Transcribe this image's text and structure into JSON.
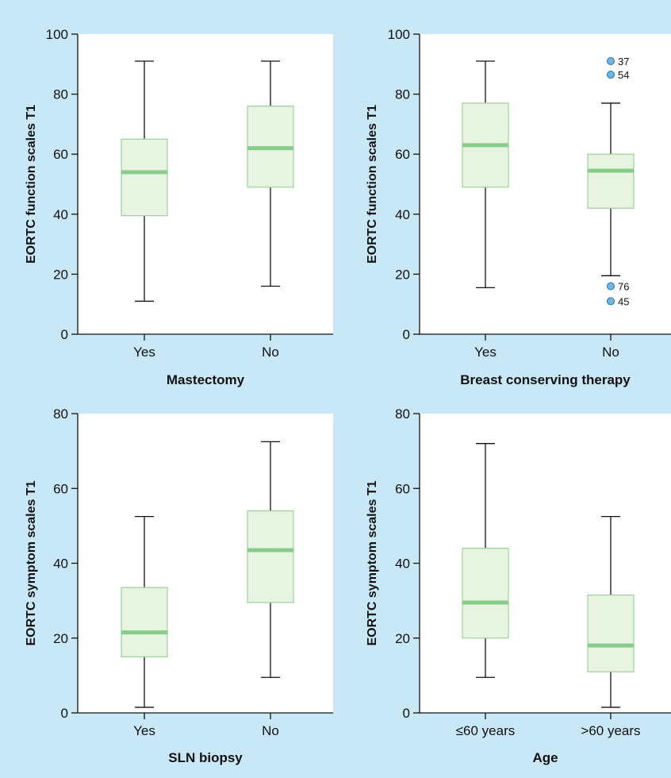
{
  "colors": {
    "background": "#c9e8f7",
    "plot_area": "#ffffff",
    "box_fill": "#e8f4e2",
    "box_edge": "#9bd09a",
    "median": "#86cc8a",
    "whisker": "#111111",
    "outlier_fill": "#6fb6e8",
    "outlier_edge": "#2d6fa8"
  },
  "chart_data": [
    {
      "type": "boxplot",
      "xlabel": "Mastectomy",
      "ylabel": "EORTC function scales T1",
      "ylim": [
        0,
        100
      ],
      "yticks": [
        0,
        20,
        40,
        60,
        80,
        100
      ],
      "categories": [
        "Yes",
        "No"
      ],
      "boxes": [
        {
          "min": 11,
          "q1": 39.5,
          "median": 54,
          "q3": 65,
          "max": 91
        },
        {
          "min": 16,
          "q1": 49,
          "median": 62,
          "q3": 76,
          "max": 91
        }
      ],
      "outliers": []
    },
    {
      "type": "boxplot",
      "xlabel": "Breast conserving therapy",
      "ylabel": "EORTC function scales T1",
      "ylim": [
        0,
        100
      ],
      "yticks": [
        0,
        20,
        40,
        60,
        80,
        100
      ],
      "categories": [
        "Yes",
        "No"
      ],
      "boxes": [
        {
          "min": 15.5,
          "q1": 49,
          "median": 63,
          "q3": 77,
          "max": 91
        },
        {
          "min": 19.5,
          "q1": 42,
          "median": 54.5,
          "q3": 60,
          "max": 77
        }
      ],
      "outliers": [
        {
          "category": 1,
          "value": 91,
          "label": "37"
        },
        {
          "category": 1,
          "value": 86.5,
          "label": "54"
        },
        {
          "category": 1,
          "value": 16,
          "label": "76"
        },
        {
          "category": 1,
          "value": 11,
          "label": "45"
        }
      ]
    },
    {
      "type": "boxplot",
      "xlabel": "SLN biopsy",
      "ylabel": "EORTC symptom scales T1",
      "ylim": [
        0,
        80
      ],
      "yticks": [
        0,
        20,
        40,
        60,
        80
      ],
      "categories": [
        "Yes",
        "No"
      ],
      "boxes": [
        {
          "min": 1.5,
          "q1": 15,
          "median": 21.5,
          "q3": 33.5,
          "max": 52.5
        },
        {
          "min": 9.5,
          "q1": 29.5,
          "median": 43.5,
          "q3": 54,
          "max": 72.5
        }
      ],
      "outliers": []
    },
    {
      "type": "boxplot",
      "xlabel": "Age",
      "ylabel": "EORTC symptom scales T1",
      "ylim": [
        0,
        80
      ],
      "yticks": [
        0,
        20,
        40,
        60,
        80
      ],
      "categories": [
        "≤60 years",
        ">60 years"
      ],
      "boxes": [
        {
          "min": 9.5,
          "q1": 20,
          "median": 29.5,
          "q3": 44,
          "max": 72
        },
        {
          "min": 1.5,
          "q1": 11,
          "median": 18,
          "q3": 31.5,
          "max": 52.5
        }
      ],
      "outliers": []
    }
  ]
}
